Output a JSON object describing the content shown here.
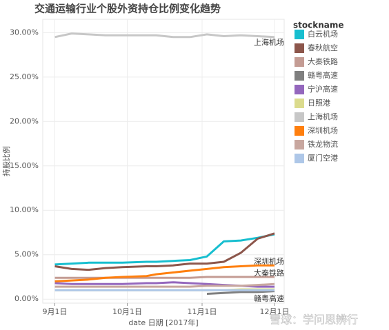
{
  "chart_data": {
    "type": "line",
    "title": "交通运输行业个股外资持仓比例变化趋势",
    "x_label": "date 日期 [2017年]",
    "y_label": "持股比例",
    "legend_title": "stockname",
    "legend": "right",
    "grid": true,
    "watermark": "雪球：学问思辨行",
    "annotations": [
      "上海机场",
      "深圳机场",
      "大秦铁路",
      "赣粤高速"
    ],
    "x": [
      "2017-09-01",
      "2017-09-08",
      "2017-09-15",
      "2017-09-22",
      "2017-09-29",
      "2017-10-09",
      "2017-10-13",
      "2017-10-20",
      "2017-10-27",
      "2017-11-03",
      "2017-11-10",
      "2017-11-17",
      "2017-11-24",
      "2017-12-01"
    ],
    "xlim": [
      "2017-08-27",
      "2017-12-05"
    ],
    "xticks": [
      {
        "value": "2017-09-01",
        "label": "9月1日"
      },
      {
        "value": "2017-10-01",
        "label": "10月1日"
      },
      {
        "value": "2017-11-01",
        "label": "11月1日"
      },
      {
        "value": "2017-12-01",
        "label": "12月1日"
      }
    ],
    "ylim": [
      -0.45,
      31.5
    ],
    "yticks": [
      {
        "value": 0,
        "label": "0.00%"
      },
      {
        "value": 5,
        "label": "5.00%"
      },
      {
        "value": 10,
        "label": "10.00%"
      },
      {
        "value": 15,
        "label": "15.00%"
      },
      {
        "value": 20,
        "label": "20.00%"
      },
      {
        "value": 25,
        "label": "25.00%"
      },
      {
        "value": 30,
        "label": "30.00%"
      }
    ],
    "series": [
      {
        "name": "白云机场",
        "color": "#17becf",
        "values": [
          3.9,
          4.0,
          4.1,
          4.1,
          4.1,
          4.2,
          4.2,
          4.3,
          4.4,
          4.8,
          6.5,
          6.6,
          6.9,
          7.3
        ]
      },
      {
        "name": "春秋航空",
        "color": "#8c564b",
        "values": [
          3.7,
          3.4,
          3.3,
          3.5,
          3.6,
          3.7,
          3.7,
          3.8,
          4.0,
          4.0,
          4.2,
          5.2,
          6.8,
          7.4
        ]
      },
      {
        "name": "大秦铁路",
        "color": "#c49c94",
        "values": [
          2.4,
          2.4,
          2.4,
          2.4,
          2.4,
          2.4,
          2.4,
          2.4,
          2.4,
          2.5,
          2.5,
          2.5,
          2.5,
          2.5
        ]
      },
      {
        "name": "赣粤高速",
        "color": "#7f7f7f",
        "values": [
          null,
          null,
          null,
          null,
          null,
          null,
          null,
          null,
          null,
          0.6,
          0.7,
          0.8,
          0.8,
          0.9
        ]
      },
      {
        "name": "宁沪高速",
        "color": "#9467bd",
        "values": [
          1.8,
          1.7,
          1.7,
          1.7,
          1.7,
          1.8,
          1.8,
          1.9,
          1.8,
          1.7,
          1.6,
          1.5,
          1.4,
          1.4
        ]
      },
      {
        "name": "日照港",
        "color": "#dbdb8d",
        "values": [
          1.0,
          1.0,
          1.0,
          1.0,
          1.0,
          1.0,
          1.0,
          1.0,
          1.0,
          1.0,
          1.0,
          1.1,
          1.1,
          1.1
        ]
      },
      {
        "name": "上海机场",
        "color": "#c7c7c7",
        "values": [
          29.5,
          29.9,
          29.8,
          29.7,
          29.7,
          29.7,
          29.7,
          29.5,
          29.5,
          29.8,
          29.6,
          29.7,
          29.6,
          29.5
        ]
      },
      {
        "name": "深圳机场",
        "color": "#ff7f0e",
        "values": [
          2.0,
          2.1,
          2.2,
          2.4,
          2.5,
          2.6,
          2.8,
          3.0,
          3.2,
          3.4,
          3.6,
          3.7,
          3.8,
          3.8
        ]
      },
      {
        "name": "铁龙物流",
        "color": "#c8a79f",
        "values": [
          1.4,
          1.4,
          1.4,
          1.4,
          1.4,
          1.4,
          1.4,
          1.4,
          1.4,
          1.5,
          1.5,
          1.5,
          1.6,
          1.7
        ]
      },
      {
        "name": "厦门空港",
        "color": "#aec7e8",
        "values": [
          1.0,
          1.0,
          1.0,
          1.0,
          1.0,
          1.0,
          1.0,
          1.0,
          1.0,
          1.0,
          1.0,
          1.0,
          1.0,
          1.0
        ]
      }
    ]
  }
}
